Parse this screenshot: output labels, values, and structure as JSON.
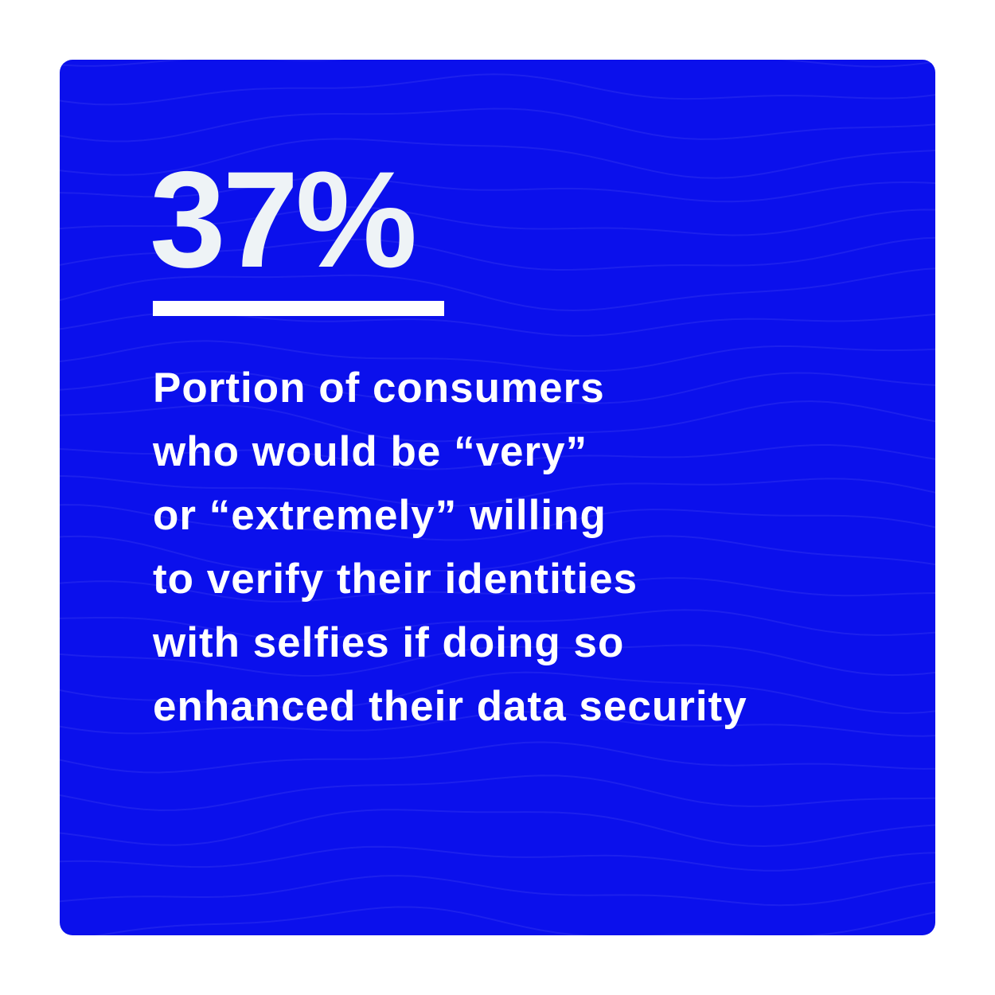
{
  "stat": "37%",
  "description_lines": [
    "Portion of consumers",
    "who would be “very”",
    "or “extremely” willing",
    "to verify their identities",
    "with selfies if doing so",
    "enhanced their data security"
  ]
}
